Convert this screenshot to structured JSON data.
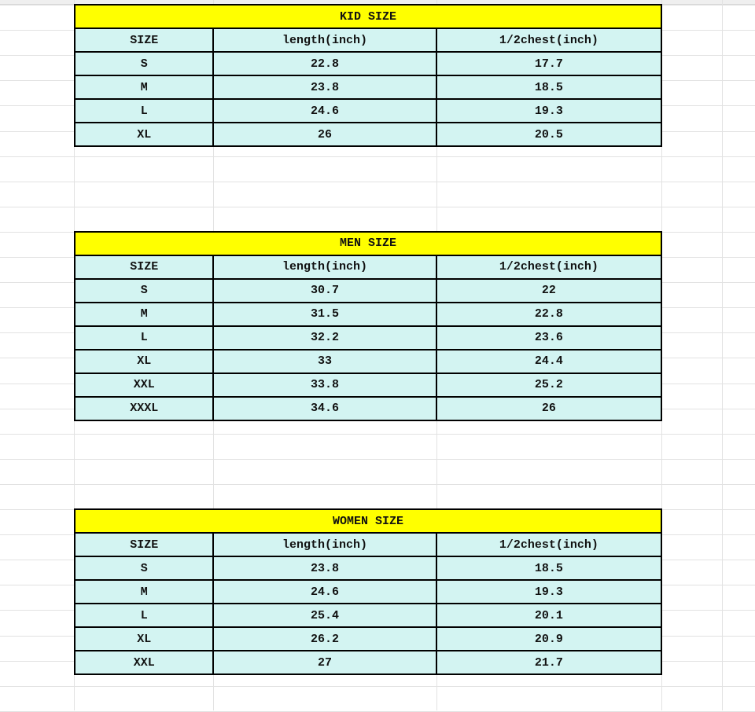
{
  "colors": {
    "title_fill": "#ffff00",
    "cell_fill": "#d3f4f2",
    "border": "#000000"
  },
  "tables": [
    {
      "title": "KID SIZE",
      "headers": [
        "SIZE",
        "length(inch)",
        "1/2chest(inch)"
      ],
      "rows": [
        [
          "S",
          "22.8",
          "17.7"
        ],
        [
          "M",
          "23.8",
          "18.5"
        ],
        [
          "L",
          "24.6",
          "19.3"
        ],
        [
          "XL",
          "26",
          "20.5"
        ]
      ]
    },
    {
      "title": "MEN SIZE",
      "headers": [
        "SIZE",
        "length(inch)",
        "1/2chest(inch)"
      ],
      "rows": [
        [
          "S",
          "30.7",
          "22"
        ],
        [
          "M",
          "31.5",
          "22.8"
        ],
        [
          "L",
          "32.2",
          "23.6"
        ],
        [
          "XL",
          "33",
          "24.4"
        ],
        [
          "XXL",
          "33.8",
          "25.2"
        ],
        [
          "XXXL",
          "34.6",
          "26"
        ]
      ]
    },
    {
      "title": "WOMEN SIZE",
      "headers": [
        "SIZE",
        "length(inch)",
        "1/2chest(inch)"
      ],
      "rows": [
        [
          "S",
          "23.8",
          "18.5"
        ],
        [
          "M",
          "24.6",
          "19.3"
        ],
        [
          "L",
          "25.4",
          "20.1"
        ],
        [
          "XL",
          "26.2",
          "20.9"
        ],
        [
          "XXL",
          "27",
          "21.7"
        ]
      ]
    }
  ]
}
